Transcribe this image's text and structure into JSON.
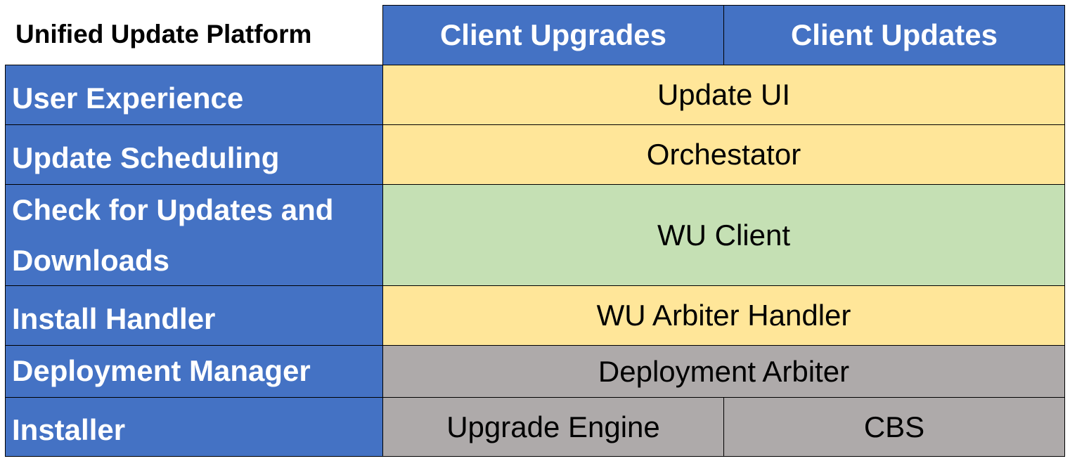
{
  "title": "Unified Update Platform",
  "columns": [
    "Client Upgrades",
    "Client Updates"
  ],
  "colors": {
    "blue": "#4472C4",
    "yellow": "#FFE699",
    "green": "#C5E0B4",
    "gray": "#AEAAAA"
  },
  "rows": [
    {
      "label": "User Experience",
      "value": "Update UI"
    },
    {
      "label": "Update Scheduling",
      "value": "Orchestator"
    },
    {
      "label": "Check for Updates and Downloads",
      "value": "WU Client"
    },
    {
      "label": "Install Handler",
      "value": "WU Arbiter Handler"
    },
    {
      "label": "Deployment Manager",
      "value": "Deployment Arbiter"
    },
    {
      "label": "Installer",
      "values": [
        "Upgrade Engine",
        "CBS"
      ]
    }
  ]
}
